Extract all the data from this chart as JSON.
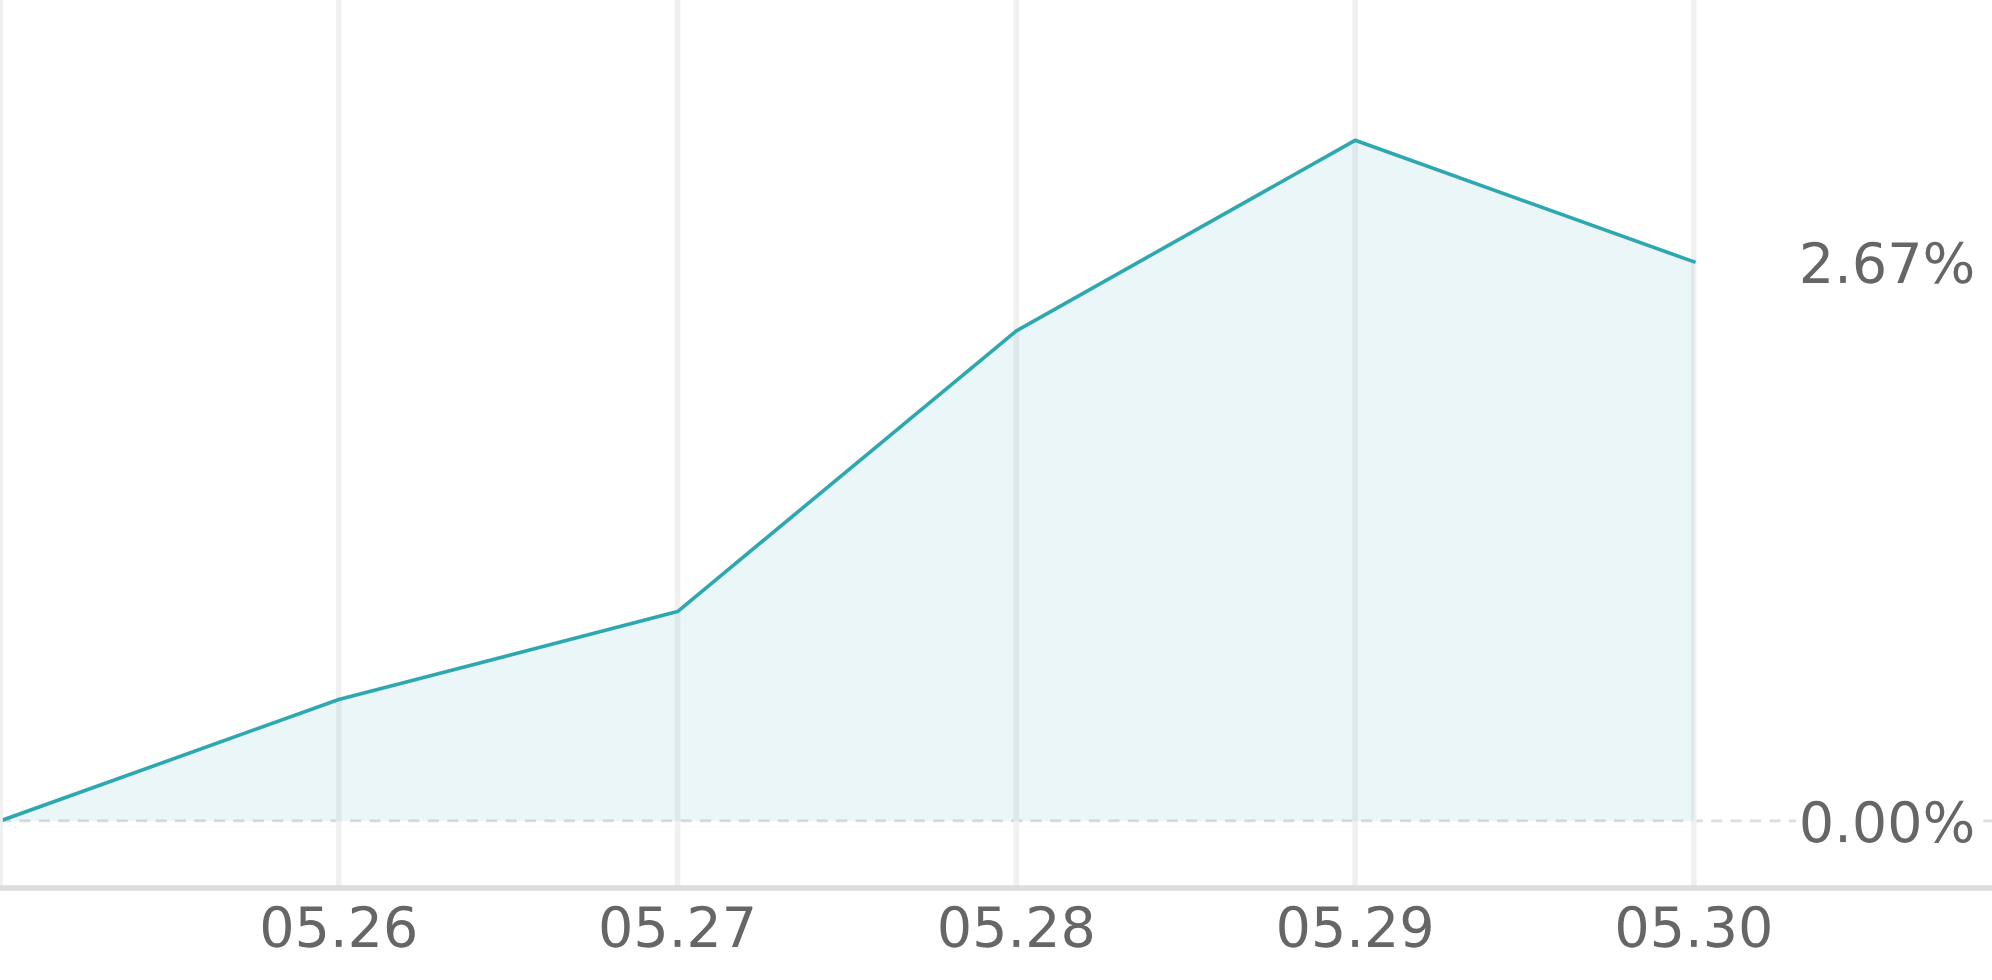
{
  "chart_data": {
    "type": "area",
    "categories": [
      null,
      "05.26",
      "05.27",
      "05.28",
      "05.29",
      "05.30"
    ],
    "series": [
      {
        "color": "#2ea8b0",
        "values": [
          0.0,
          0.58,
          1.0,
          2.34,
          3.25,
          2.67
        ]
      }
    ],
    "ylim": [
      -0.32,
      3.92
    ],
    "yticks": [
      {
        "value": 0,
        "label": "0.00%"
      },
      {
        "value": 2.67,
        "label": "2.67%"
      }
    ],
    "ref_lines": [
      {
        "axis": "y",
        "value": 0,
        "color": "#dddddd",
        "line_style": "dashed"
      }
    ],
    "grid": "x",
    "legend": false
  }
}
